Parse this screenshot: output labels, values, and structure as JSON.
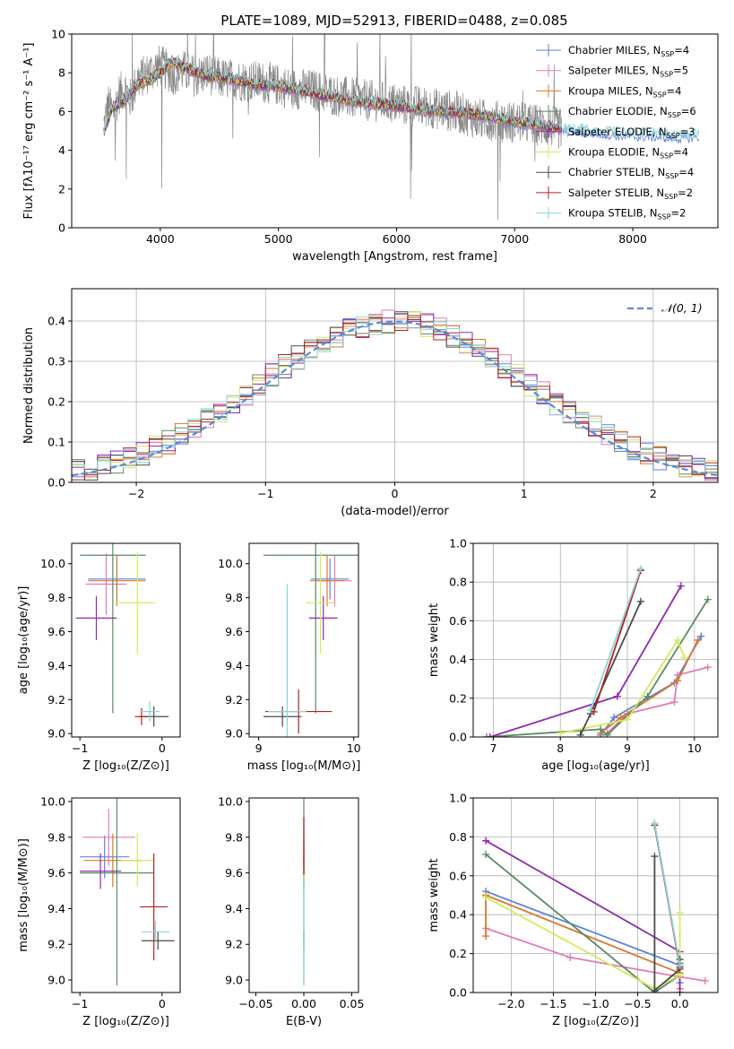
{
  "figure": {
    "title": "PLATE=1089, MJD=52913, FIBERID=0488, z=0.085"
  },
  "colors": {
    "chabrier_miles": "#5b84d8",
    "salpeter_miles": "#e07bb5",
    "kroupa_miles": "#d9782b",
    "chabrier_elodie": "#5b8a63",
    "salpeter_elodie": "#8e2bb0",
    "kroupa_elodie": "#d2ea5a",
    "chabrier_stelib": "#4a4a4a",
    "salpeter_stelib": "#b22222",
    "kroupa_stelib": "#8ad3d8",
    "data": "#888888",
    "normal": "#5b8ad6"
  },
  "chart_data": [
    {
      "id": "spectrum",
      "type": "line",
      "xlabel": "wavelength [Angstrom, rest frame]",
      "ylabel": "Flux [fλ10⁻¹⁷ erg cm⁻² s⁻¹ A⁻¹]",
      "xlim": [
        3250,
        8720
      ],
      "ylim": [
        0,
        10
      ],
      "xticks": [
        4000,
        5000,
        6000,
        7000,
        8000
      ],
      "yticks": [
        0,
        2,
        4,
        6,
        8,
        10
      ],
      "legend_position": "top-right",
      "legend": [
        {
          "label": "Chabrier MILES, N",
          "sub": "SSP",
          "suffix": "=4",
          "color_key": "chabrier_miles"
        },
        {
          "label": "Salpeter MILES, N",
          "sub": "SSP",
          "suffix": "=5",
          "color_key": "salpeter_miles"
        },
        {
          "label": "Kroupa MILES, N",
          "sub": "SSP",
          "suffix": "=4",
          "color_key": "kroupa_miles"
        },
        {
          "label": "Chabrier ELODIE, N",
          "sub": "SSP",
          "suffix": "=6",
          "color_key": "chabrier_elodie"
        },
        {
          "label": "Salpeter ELODIE, N",
          "sub": "SSP",
          "suffix": "=3",
          "color_key": "salpeter_elodie"
        },
        {
          "label": "Kroupa ELODIE, N",
          "sub": "SSP",
          "suffix": "=4",
          "color_key": "kroupa_elodie"
        },
        {
          "label": "Chabrier STELIB, N",
          "sub": "SSP",
          "suffix": "=4",
          "color_key": "chabrier_stelib"
        },
        {
          "label": "Salpeter STELIB, N",
          "sub": "SSP",
          "suffix": "=2",
          "color_key": "salpeter_stelib"
        },
        {
          "label": "Kroupa STELIB, N",
          "sub": "SSP",
          "suffix": "=2",
          "color_key": "kroupa_stelib"
        }
      ],
      "data_curve": {
        "x": [
          3520,
          3560,
          3600,
          3650,
          3700,
          3750,
          3800,
          3850,
          3900,
          3950,
          4000,
          4100,
          4200,
          4300,
          4400,
          4500,
          4700,
          4900,
          5100,
          5300,
          5500,
          5700,
          5900,
          6100,
          6300,
          6500,
          6700,
          6900,
          7100,
          7300,
          7400
        ],
        "y": [
          5.2,
          6.4,
          5.8,
          6.9,
          7.2,
          6.6,
          7.6,
          7.8,
          8.0,
          8.2,
          8.4,
          7.9,
          8.1,
          7.8,
          8.0,
          7.7,
          7.6,
          7.5,
          7.2,
          7.1,
          6.8,
          6.6,
          6.5,
          6.3,
          6.2,
          6.0,
          5.6,
          5.5,
          5.4,
          5.2,
          5.1
        ]
      },
      "model_curve": {
        "x": [
          3520,
          3600,
          3700,
          3800,
          3900,
          4000,
          4100,
          4200,
          4400,
          4600,
          4800,
          5000,
          5200,
          5400,
          5600,
          5800,
          6000,
          6200,
          6400,
          6600,
          6800,
          7000,
          7200,
          7400,
          7600,
          7800,
          8000,
          8200,
          8400,
          8560
        ],
        "y": [
          5.0,
          6.2,
          6.6,
          7.4,
          7.6,
          8.0,
          8.6,
          8.3,
          7.8,
          7.7,
          7.4,
          7.3,
          7.1,
          6.8,
          6.6,
          6.4,
          6.3,
          6.1,
          6.0,
          5.9,
          5.7,
          5.5,
          5.3,
          5.1,
          5.0,
          4.9,
          4.8,
          4.8,
          4.7,
          4.8
        ]
      }
    },
    {
      "id": "residuals",
      "type": "line",
      "xlabel": "(data-model)/error",
      "ylabel": "Normed distribution",
      "xlim": [
        -2.5,
        2.5
      ],
      "ylim": [
        0,
        0.48
      ],
      "xticks": [
        -2,
        -1,
        0,
        1,
        2
      ],
      "yticks": [
        0.0,
        0.1,
        0.2,
        0.3,
        0.4
      ],
      "legend_position": "top-right",
      "legend": [
        {
          "label": "𝒩(0, 1)",
          "color_key": "normal"
        }
      ]
    },
    {
      "id": "age_vs_Z",
      "type": "scatter",
      "xlabel": "Z [log₁₀(Z/Z⊙)]",
      "ylabel": "age  [log₁₀(age/yr)]",
      "xlim": [
        -1.1,
        0.22
      ],
      "ylim": [
        8.98,
        10.12
      ],
      "xticks": [
        -1,
        0
      ],
      "yticks": [
        9.0,
        9.2,
        9.4,
        9.6,
        9.8,
        10.0
      ],
      "points": [
        {
          "color_key": "chabrier_miles",
          "x": -0.55,
          "y": 9.91,
          "xerr": 0.35,
          "yerr": 0.12
        },
        {
          "color_key": "salpeter_miles",
          "x": -0.68,
          "y": 9.88,
          "xerr": 0.25,
          "yerr": 0.18
        },
        {
          "color_key": "kroupa_miles",
          "x": -0.55,
          "y": 9.9,
          "xerr": 0.35,
          "yerr": 0.15
        },
        {
          "color_key": "chabrier_elodie",
          "x": -0.6,
          "y": 10.05,
          "xerr": 0.4,
          "yerr": 0.93
        },
        {
          "color_key": "salpeter_elodie",
          "x": -0.8,
          "y": 9.68,
          "xerr": 0.25,
          "yerr": 0.13
        },
        {
          "color_key": "kroupa_elodie",
          "x": -0.3,
          "y": 9.77,
          "xerr": 0.22,
          "yerr": 0.3
        },
        {
          "color_key": "chabrier_stelib",
          "x": -0.1,
          "y": 9.1,
          "xerr": 0.18,
          "yerr": 0.06
        },
        {
          "color_key": "salpeter_stelib",
          "x": -0.25,
          "y": 9.1,
          "xerr": 0.08,
          "yerr": 0.05
        },
        {
          "color_key": "kroupa_stelib",
          "x": -0.15,
          "y": 9.13,
          "xerr": 0.12,
          "yerr": 0.06
        }
      ]
    },
    {
      "id": "age_vs_mass",
      "type": "scatter",
      "xlabel": "mass [log₁₀(M/M⊙)]",
      "ylabel": "",
      "xlim": [
        8.9,
        10.05
      ],
      "ylim": [
        8.98,
        10.12
      ],
      "xticks": [
        9,
        10
      ],
      "yticks": [
        9.0,
        9.2,
        9.4,
        9.6,
        9.8,
        10.0
      ],
      "points": [
        {
          "color_key": "chabrier_miles",
          "x": 9.75,
          "y": 9.91,
          "xerr": 0.2,
          "yerr": 0.12
        },
        {
          "color_key": "salpeter_miles",
          "x": 9.8,
          "y": 9.9,
          "xerr": 0.18,
          "yerr": 0.15
        },
        {
          "color_key": "kroupa_miles",
          "x": 9.72,
          "y": 9.9,
          "xerr": 0.18,
          "yerr": 0.15
        },
        {
          "color_key": "chabrier_elodie",
          "x": 9.6,
          "y": 10.05,
          "xerr": 0.55,
          "yerr": 0.93
        },
        {
          "color_key": "salpeter_elodie",
          "x": 9.68,
          "y": 9.68,
          "xerr": 0.15,
          "yerr": 0.13
        },
        {
          "color_key": "kroupa_elodie",
          "x": 9.65,
          "y": 9.77,
          "xerr": 0.15,
          "yerr": 0.3
        },
        {
          "color_key": "chabrier_stelib",
          "x": 9.25,
          "y": 9.1,
          "xerr": 0.2,
          "yerr": 0.06
        },
        {
          "color_key": "salpeter_stelib",
          "x": 9.42,
          "y": 9.13,
          "xerr": 0.35,
          "yerr": 0.13
        },
        {
          "color_key": "kroupa_stelib",
          "x": 9.3,
          "y": 9.13,
          "xerr": 0.2,
          "yerr": 0.75
        }
      ]
    },
    {
      "id": "weight_vs_age",
      "type": "line",
      "xlabel": "age  [log₁₀(age/yr)]",
      "ylabel": "mass weight",
      "xlim": [
        6.7,
        10.35
      ],
      "ylim": [
        0,
        1.0
      ],
      "xticks": [
        7,
        8,
        9,
        10
      ],
      "yticks": [
        0.0,
        0.2,
        0.4,
        0.6,
        0.8,
        1.0
      ],
      "series": [
        {
          "color_key": "chabrier_miles",
          "x": [
            8.6,
            8.8,
            9.7,
            10.1
          ],
          "y": [
            0.01,
            0.1,
            0.28,
            0.52
          ]
        },
        {
          "color_key": "salpeter_miles",
          "x": [
            8.7,
            9.0,
            9.7,
            9.75,
            10.2
          ],
          "y": [
            0.02,
            0.12,
            0.18,
            0.32,
            0.36
          ]
        },
        {
          "color_key": "kroupa_miles",
          "x": [
            8.6,
            8.9,
            9.75,
            10.05
          ],
          "y": [
            0.02,
            0.1,
            0.29,
            0.5
          ]
        },
        {
          "color_key": "chabrier_elodie",
          "x": [
            6.9,
            8.6,
            8.7,
            9.3,
            10.2
          ],
          "y": [
            0.0,
            0.04,
            0.01,
            0.21,
            0.71
          ]
        },
        {
          "color_key": "salpeter_elodie",
          "x": [
            6.95,
            8.85,
            9.8
          ],
          "y": [
            0.0,
            0.21,
            0.78
          ]
        },
        {
          "color_key": "kroupa_elodie",
          "x": [
            8.0,
            9.0,
            9.75,
            9.85
          ],
          "y": [
            0.02,
            0.09,
            0.5,
            0.41
          ]
        },
        {
          "color_key": "chabrier_stelib",
          "x": [
            8.3,
            8.45,
            9.2
          ],
          "y": [
            0.01,
            0.12,
            0.7
          ]
        },
        {
          "color_key": "salpeter_stelib",
          "x": [
            8.5,
            9.2
          ],
          "y": [
            0.13,
            0.86
          ]
        },
        {
          "color_key": "kroupa_stelib",
          "x": [
            8.45,
            9.2
          ],
          "y": [
            0.14,
            0.87
          ]
        }
      ]
    },
    {
      "id": "mass_vs_Z",
      "type": "scatter",
      "xlabel": "Z [log₁₀(Z/Z⊙)]",
      "ylabel": "mass [log₁₀(M/M⊙)]",
      "xlim": [
        -1.1,
        0.22
      ],
      "ylim": [
        8.93,
        10.02
      ],
      "xticks": [
        -1,
        0
      ],
      "yticks": [
        9.0,
        9.2,
        9.4,
        9.6,
        9.8,
        10.0
      ],
      "points": [
        {
          "color_key": "chabrier_miles",
          "x": -0.7,
          "y": 9.69,
          "xerr": 0.3,
          "yerr": 0.12
        },
        {
          "color_key": "salpeter_miles",
          "x": -0.65,
          "y": 9.8,
          "xerr": 0.32,
          "yerr": 0.16
        },
        {
          "color_key": "kroupa_miles",
          "x": -0.6,
          "y": 9.67,
          "xerr": 0.35,
          "yerr": 0.15
        },
        {
          "color_key": "chabrier_elodie",
          "x": -0.55,
          "y": 9.6,
          "xerr": 0.45,
          "yerr": 0.63
        },
        {
          "color_key": "salpeter_elodie",
          "x": -0.75,
          "y": 9.61,
          "xerr": 0.25,
          "yerr": 0.1
        },
        {
          "color_key": "kroupa_elodie",
          "x": -0.3,
          "y": 9.67,
          "xerr": 0.2,
          "yerr": 0.15
        },
        {
          "color_key": "chabrier_stelib",
          "x": -0.05,
          "y": 9.22,
          "xerr": 0.2,
          "yerr": 0.05
        },
        {
          "color_key": "salpeter_stelib",
          "x": -0.1,
          "y": 9.41,
          "xerr": 0.17,
          "yerr": 0.3
        },
        {
          "color_key": "kroupa_stelib",
          "x": -0.08,
          "y": 9.27,
          "xerr": 0.17,
          "yerr": 0.06
        }
      ]
    },
    {
      "id": "mass_vs_EBV",
      "type": "scatter",
      "xlabel": "E(B-V)",
      "ylabel": "",
      "xlim": [
        -0.057,
        0.057
      ],
      "ylim": [
        8.93,
        10.02
      ],
      "xticks": [
        -0.05,
        0.0,
        0.05
      ],
      "yticks": [
        9.0,
        9.2,
        9.4,
        9.6,
        9.8,
        10.0
      ],
      "points": [
        {
          "color_key": "chabrier_miles",
          "x": 0.0,
          "y": 9.69,
          "xerr": 0,
          "yerr": 0.1
        },
        {
          "color_key": "salpeter_miles",
          "x": 0.0,
          "y": 9.8,
          "xerr": 0,
          "yerr": 0.14
        },
        {
          "color_key": "kroupa_miles",
          "x": 0.0,
          "y": 9.67,
          "xerr": 0,
          "yerr": 0.12
        },
        {
          "color_key": "chabrier_elodie",
          "x": 0.0,
          "y": 9.6,
          "xerr": 0,
          "yerr": 0.63
        },
        {
          "color_key": "salpeter_elodie",
          "x": 0.0,
          "y": 9.61,
          "xerr": 0,
          "yerr": 0.1
        },
        {
          "color_key": "kroupa_elodie",
          "x": 0.0,
          "y": 9.67,
          "xerr": 0,
          "yerr": 0.12
        },
        {
          "color_key": "chabrier_stelib",
          "x": 0.0,
          "y": 9.22,
          "xerr": 0,
          "yerr": 0.05
        },
        {
          "color_key": "salpeter_stelib",
          "x": 0.0,
          "y": 9.75,
          "xerr": 0,
          "yerr": 0.16
        },
        {
          "color_key": "kroupa_stelib",
          "x": 0.0,
          "y": 9.27,
          "xerr": 0,
          "yerr": 0.3
        }
      ]
    },
    {
      "id": "weight_vs_Z",
      "type": "line",
      "xlabel": "Z [log₁₀(Z/Z⊙)]",
      "ylabel": "mass weight",
      "xlim": [
        -2.45,
        0.45
      ],
      "ylim": [
        0,
        1.0
      ],
      "xticks": [
        -2.0,
        -1.5,
        -1.0,
        -0.5,
        0.0
      ],
      "yticks": [
        0.0,
        0.2,
        0.4,
        0.6,
        0.8,
        1.0
      ],
      "series": [
        {
          "color_key": "chabrier_miles",
          "x": [
            -2.3,
            0.0,
            0.0
          ],
          "y": [
            0.52,
            0.14,
            0.05
          ]
        },
        {
          "color_key": "salpeter_miles",
          "x": [
            -2.3,
            -1.3,
            0.0,
            0.3
          ],
          "y": [
            0.33,
            0.18,
            0.08,
            0.06
          ]
        },
        {
          "color_key": "kroupa_miles",
          "x": [
            -2.3,
            -2.3,
            0.0,
            0.0
          ],
          "y": [
            0.29,
            0.5,
            0.1,
            0.02
          ]
        },
        {
          "color_key": "chabrier_elodie",
          "x": [
            -2.3,
            -0.3,
            0.0,
            0.0
          ],
          "y": [
            0.71,
            0.0,
            0.09,
            0.15
          ]
        },
        {
          "color_key": "salpeter_elodie",
          "x": [
            -2.3,
            0.0,
            0.0
          ],
          "y": [
            0.78,
            0.21,
            0.0
          ]
        },
        {
          "color_key": "kroupa_elodie",
          "x": [
            -2.3,
            -0.3,
            0.0,
            0.0
          ],
          "y": [
            0.49,
            0.02,
            0.09,
            0.41
          ]
        },
        {
          "color_key": "chabrier_stelib",
          "x": [
            -0.3,
            -0.3,
            0.0,
            0.0
          ],
          "y": [
            0.7,
            0.01,
            0.12,
            0.17
          ]
        },
        {
          "color_key": "salpeter_stelib",
          "x": [
            -0.3,
            0.0
          ],
          "y": [
            0.86,
            0.13
          ]
        },
        {
          "color_key": "kroupa_stelib",
          "x": [
            -0.3,
            0.0
          ],
          "y": [
            0.87,
            0.14
          ]
        }
      ]
    }
  ]
}
